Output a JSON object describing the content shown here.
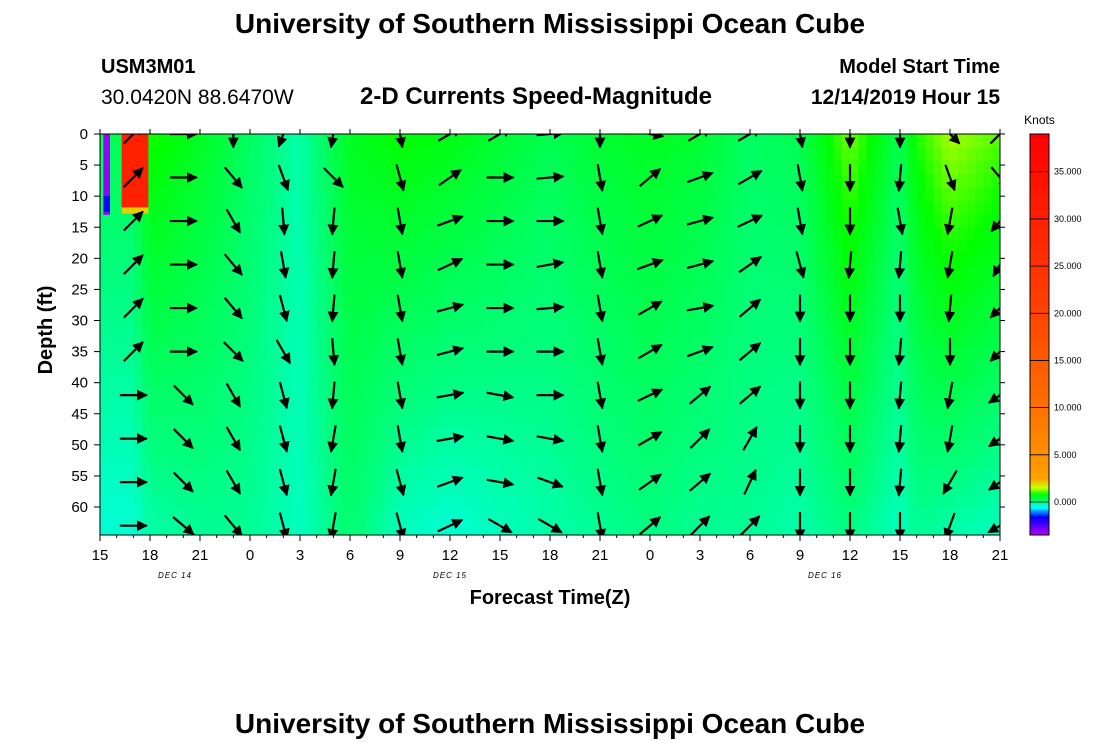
{
  "header": {
    "title": "University of Southern Mississippi Ocean Cube",
    "footer_title": "University of Southern Mississippi Ocean Cube",
    "station_id": "USM3M01",
    "location": "30.0420N 88.6470W",
    "plot_title": "2-D Currents Speed-Magnitude",
    "model_start_label": "Model Start Time",
    "model_start_value": "12/14/2019 Hour 15"
  },
  "chart_data": {
    "type": "heatmap",
    "title": "2-D Currents Speed-Magnitude",
    "xlabel": "Forecast Time(Z)",
    "ylabel": "Depth (ft)",
    "x_unit": "hours since 12/14/2019 15Z",
    "xlim": [
      0,
      54
    ],
    "ylim": [
      0,
      64.5
    ],
    "y_inverted": true,
    "x_ticks": [
      0,
      3,
      6,
      9,
      12,
      15,
      18,
      21,
      24,
      27,
      30,
      33,
      36,
      39,
      42,
      45,
      48,
      51,
      54
    ],
    "x_tick_labels": [
      "15",
      "18",
      "21",
      "0",
      "3",
      "6",
      "9",
      "12",
      "15",
      "18",
      "21",
      "0",
      "3",
      "6",
      "9",
      "12",
      "15",
      "18",
      "21"
    ],
    "y_ticks": [
      0,
      5,
      10,
      15,
      20,
      25,
      30,
      35,
      40,
      45,
      50,
      55,
      60
    ],
    "y_tick_labels": [
      "0",
      "5",
      "10",
      "15",
      "20",
      "25",
      "30",
      "35",
      "40",
      "45",
      "50",
      "55",
      "60"
    ],
    "date_labels": [
      {
        "x": 4.5,
        "text": "DEC 14"
      },
      {
        "x": 21,
        "text": "DEC 15"
      },
      {
        "x": 43.5,
        "text": "DEC 16"
      }
    ],
    "colorbar": {
      "label": "Knots",
      "range": [
        -3.5,
        39
      ],
      "tick_values": [
        0,
        5,
        10,
        15,
        20,
        25,
        30,
        35
      ],
      "tick_labels": [
        "0.000",
        "5.000",
        "10.000",
        "15.000",
        "20.000",
        "25.000",
        "30.000",
        "35.000"
      ],
      "stops": [
        {
          "v": -3.5,
          "color": "#b400ff"
        },
        {
          "v": -1.6,
          "color": "#0000ff"
        },
        {
          "v": -0.6,
          "color": "#00ffff"
        },
        {
          "v": 0.0,
          "color": "#00ff80"
        },
        {
          "v": 0.8,
          "color": "#00ff00"
        },
        {
          "v": 1.5,
          "color": "#c8ff00"
        },
        {
          "v": 2.5,
          "color": "#ffa000"
        },
        {
          "v": 10,
          "color": "#ff7000"
        },
        {
          "v": 22,
          "color": "#ff3c00"
        },
        {
          "v": 39,
          "color": "#ff0000"
        }
      ]
    },
    "speed_field": {
      "times": [
        0,
        1,
        2,
        3,
        6,
        9,
        12,
        15,
        18,
        21,
        24,
        27,
        30,
        33,
        36,
        39,
        42,
        45,
        47,
        48,
        49,
        51,
        54
      ],
      "surface": [
        0.3,
        0.3,
        0.3,
        0.9,
        0.6,
        0.2,
        -0.2,
        0.6,
        0.8,
        0.7,
        0.5,
        0.3,
        0.5,
        0.6,
        0.5,
        0.2,
        0.3,
        1.2,
        0.6,
        0.3,
        0.9,
        1.4,
        1.1
      ],
      "bottom": [
        -0.4,
        -0.4,
        -0.4,
        -0.2,
        -0.1,
        -0.1,
        -0.3,
        0.1,
        -0.3,
        -0.4,
        -0.3,
        -0.2,
        -0.1,
        0.0,
        -0.1,
        -0.1,
        -0.2,
        0.0,
        -0.2,
        -0.3,
        -0.1,
        -0.2,
        -0.3
      ]
    },
    "anomalies": [
      {
        "x0": 0.2,
        "x1": 0.6,
        "y0": 0,
        "y1": 13,
        "value": -3.2
      },
      {
        "x0": 0.2,
        "x1": 0.6,
        "y0": 10,
        "y1": 12.5,
        "value": -1.8
      },
      {
        "x0": 1.3,
        "x1": 2.9,
        "y0": 0,
        "y1": 12,
        "value": 30
      },
      {
        "x0": 1.3,
        "x1": 2.9,
        "y0": 11.8,
        "y1": 12.8,
        "value": 2.0
      }
    ],
    "vector_field": {
      "times": [
        2,
        5,
        8,
        11,
        14,
        18,
        21,
        24,
        27,
        30,
        33,
        36,
        39,
        42,
        45,
        48,
        51,
        54
      ],
      "depths": [
        0,
        7,
        14,
        21,
        28,
        35,
        42,
        49,
        56,
        63
      ],
      "mode": "arrow points in direction of flow; angle in degrees clockwise from east (screen)",
      "angles": [
        [
          -45,
          0,
          90,
          110,
          100,
          80,
          -30,
          -30,
          -5,
          90,
          10,
          -30,
          -30,
          80,
          90,
          90,
          45,
          -45
        ],
        [
          -45,
          0,
          50,
          70,
          45,
          75,
          -35,
          0,
          -5,
          80,
          -40,
          -20,
          -30,
          80,
          90,
          95,
          70,
          50
        ],
        [
          -45,
          0,
          60,
          85,
          95,
          80,
          -20,
          0,
          0,
          80,
          -25,
          -15,
          -25,
          80,
          90,
          80,
          100,
          130
        ],
        [
          -45,
          0,
          50,
          80,
          95,
          80,
          -25,
          0,
          -10,
          80,
          -20,
          -15,
          -35,
          75,
          95,
          95,
          100,
          120
        ],
        [
          -45,
          0,
          50,
          75,
          95,
          80,
          -15,
          0,
          -5,
          80,
          -30,
          -10,
          -40,
          90,
          90,
          90,
          95,
          135
        ],
        [
          -45,
          0,
          45,
          60,
          85,
          80,
          -15,
          0,
          0,
          80,
          -30,
          -20,
          -40,
          90,
          90,
          95,
          90,
          135
        ],
        [
          0,
          45,
          60,
          75,
          95,
          80,
          -10,
          10,
          0,
          80,
          -25,
          -40,
          -40,
          90,
          90,
          95,
          100,
          145
        ],
        [
          0,
          45,
          60,
          75,
          100,
          80,
          -10,
          10,
          10,
          80,
          -30,
          -45,
          -60,
          90,
          90,
          95,
          100,
          145
        ],
        [
          0,
          45,
          60,
          75,
          100,
          75,
          -20,
          10,
          20,
          80,
          -35,
          -40,
          -65,
          90,
          90,
          95,
          120,
          145
        ],
        [
          0,
          40,
          50,
          75,
          100,
          75,
          -25,
          30,
          30,
          80,
          -40,
          -45,
          -45,
          90,
          90,
          90,
          110,
          150
        ]
      ]
    }
  }
}
